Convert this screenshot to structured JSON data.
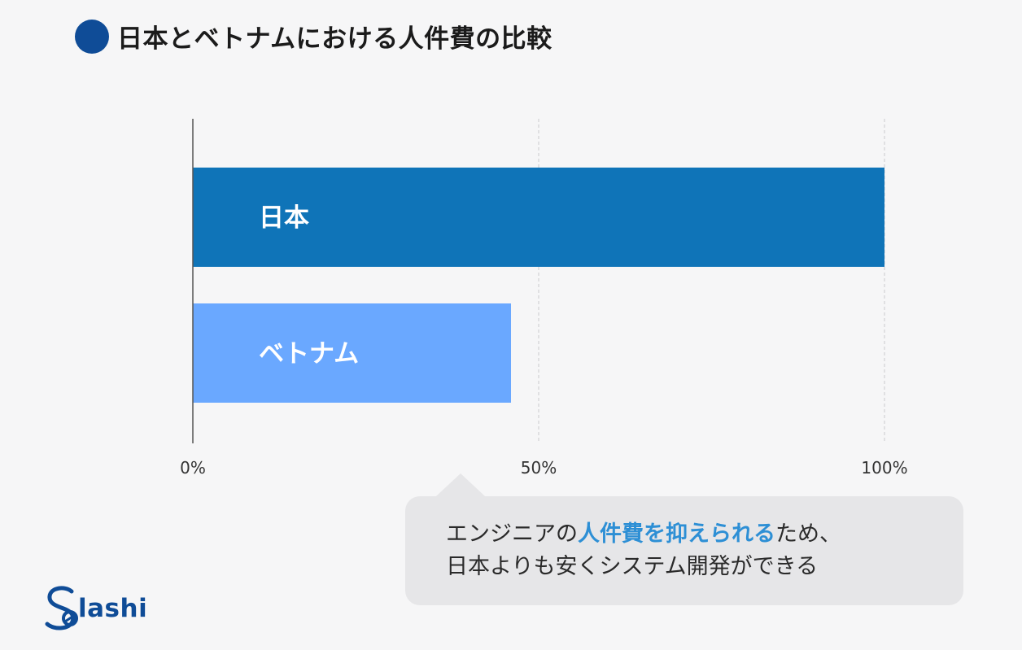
{
  "header": {
    "title": "日本とベトナムにおける人件費の比較"
  },
  "chart_data": {
    "type": "bar",
    "orientation": "horizontal",
    "categories": [
      "日本",
      "ベトナム"
    ],
    "values": [
      100,
      46
    ],
    "xlim": [
      0,
      100
    ],
    "ticks": [
      "0%",
      "50%",
      "100%"
    ],
    "tick_values": [
      0,
      50,
      100
    ],
    "grid": true,
    "colors": [
      "#0f74b8",
      "#6aa8ff"
    ]
  },
  "callout": {
    "line1_before": "エンジニアの",
    "line1_highlight": "人件費を抑えられる",
    "line1_after": "ため、",
    "line2": "日本よりも安くシステム開発ができる"
  },
  "logo": {
    "text": "lashi"
  }
}
